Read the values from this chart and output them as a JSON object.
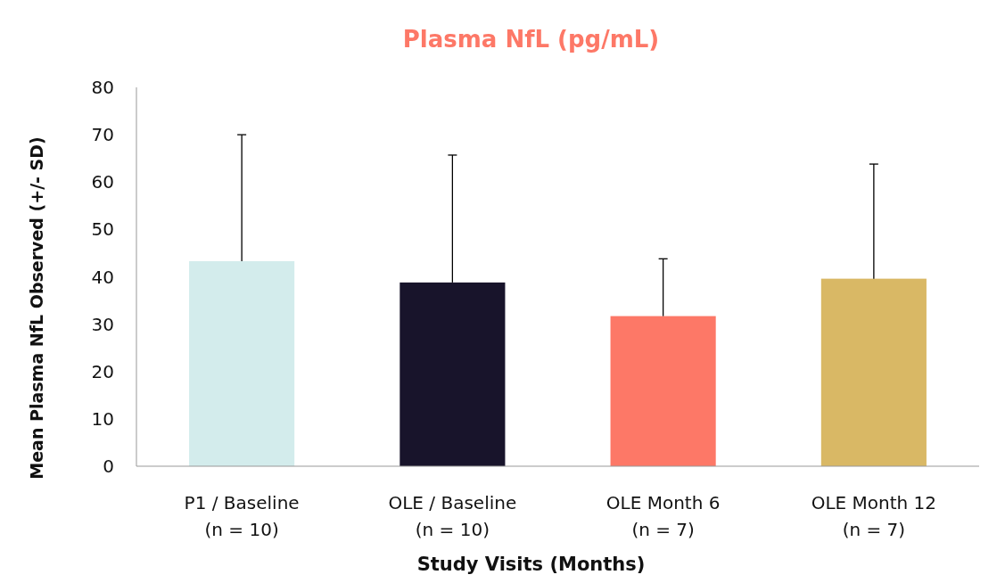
{
  "chart_data": {
    "type": "bar",
    "title": "Plasma NfL (pg/mL)",
    "xlabel": "Study Visits (Months)",
    "ylabel": "Mean Plasma NfL Observed  (+/- SD)",
    "categories": [
      "P1 / Baseline\n(n = 10)",
      "OLE / Baseline\n(n = 10)",
      "OLE Month 6\n(n = 7)",
      "OLE Month 12\n(n = 7)"
    ],
    "values": [
      43.3,
      38.8,
      31.7,
      39.6
    ],
    "colors": [
      "#d3ecec",
      "#18142b",
      "#fd7867",
      "#d9b865"
    ],
    "errors": [
      [
        43.3,
        70.0
      ],
      [
        38.8,
        65.7
      ],
      [
        31.7,
        43.8
      ],
      [
        39.6,
        63.8
      ]
    ],
    "ylim": [
      0,
      80
    ],
    "yticks": [
      0,
      10,
      20,
      30,
      40,
      50,
      60,
      70,
      80
    ],
    "grid": false
  }
}
